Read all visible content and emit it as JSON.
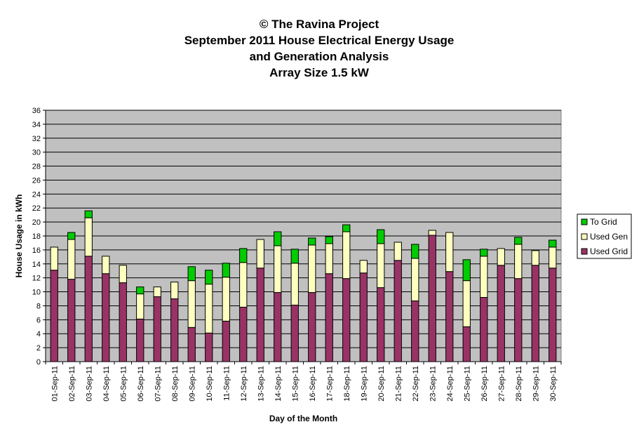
{
  "chart_data": {
    "type": "bar",
    "stacked": true,
    "title_lines": [
      "© The Ravina Project",
      "September 2011 House Electrical Energy Usage",
      "and Generation Analysis",
      "Array Size 1.5 kW"
    ],
    "xlabel": "Day of the Month",
    "ylabel": "House Usage in kWh",
    "ylim": [
      0,
      36
    ],
    "ytick_step": 2,
    "grid": true,
    "legend_position": "right",
    "plot_background": "#c0c0c0",
    "categories": [
      "01-Sep-11",
      "02-Sep-11",
      "03-Sep-11",
      "04-Sep-11",
      "05-Sep-11",
      "06-Sep-11",
      "07-Sep-11",
      "08-Sep-11",
      "09-Sep-11",
      "10-Sep-11",
      "11-Sep-11",
      "12-Sep-11",
      "13-Sep-11",
      "14-Sep-11",
      "15-Sep-11",
      "16-Sep-11",
      "17-Sep-11",
      "18-Sep-11",
      "19-Sep-11",
      "20-Sep-11",
      "21-Sep-11",
      "22-Sep-11",
      "23-Sep-11",
      "24-Sep-11",
      "25-Sep-11",
      "26-Sep-11",
      "27-Sep-11",
      "28-Sep-11",
      "29-Sep-11",
      "30-Sep-11"
    ],
    "series": [
      {
        "name": "Used Grid",
        "color": "#993366",
        "values": [
          13.1,
          11.8,
          15.1,
          12.6,
          11.3,
          6.1,
          9.3,
          9.0,
          4.9,
          4.1,
          5.8,
          7.8,
          13.4,
          9.9,
          8.1,
          9.9,
          12.6,
          11.9,
          12.7,
          10.6,
          14.5,
          8.7,
          18.1,
          12.9,
          5.0,
          9.2,
          13.8,
          11.9,
          13.8,
          13.4
        ]
      },
      {
        "name": "Used Gen",
        "color": "#ffffc0",
        "values": [
          3.3,
          5.7,
          5.5,
          2.5,
          2.5,
          3.6,
          1.4,
          2.4,
          6.7,
          7.0,
          6.3,
          6.4,
          4.1,
          6.7,
          6.0,
          6.8,
          4.3,
          6.7,
          1.8,
          6.3,
          2.6,
          6.1,
          0.7,
          5.6,
          6.6,
          5.9,
          2.4,
          4.9,
          2.1,
          3.0
        ]
      },
      {
        "name": "To Grid",
        "color": "#00cc00",
        "values": [
          0.0,
          1.0,
          1.0,
          0.0,
          0.0,
          1.0,
          0.0,
          0.0,
          2.0,
          2.0,
          2.0,
          2.0,
          0.0,
          2.0,
          2.0,
          1.0,
          1.0,
          1.0,
          0.0,
          2.0,
          0.0,
          2.0,
          0.0,
          0.0,
          3.0,
          1.0,
          0.0,
          1.0,
          0.0,
          1.0
        ]
      }
    ]
  },
  "legend": {
    "items": [
      {
        "label": "To Grid",
        "color": "#00cc00"
      },
      {
        "label": "Used Gen",
        "color": "#ffffc0"
      },
      {
        "label": "Used Grid",
        "color": "#993366"
      }
    ]
  }
}
